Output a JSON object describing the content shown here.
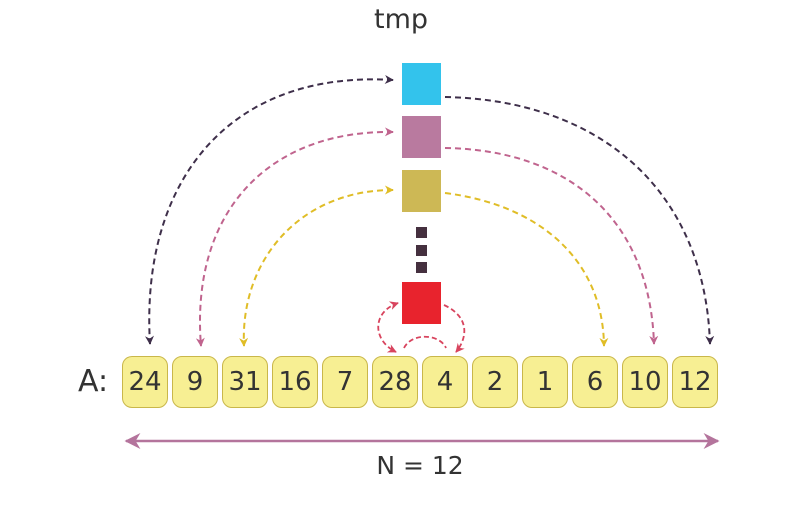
{
  "tmp_label": "tmp",
  "array_label": "A:",
  "array_values": [
    "24",
    "9",
    "31",
    "16",
    "7",
    "28",
    "4",
    "2",
    "1",
    "6",
    "10",
    "12"
  ],
  "n_label": "N = 12",
  "colors": {
    "cell_fill": "#f7ef93",
    "cell_border": "#c9b74a",
    "tmp_blue": "#33c3ec",
    "tmp_mauve": "#b97a9f",
    "tmp_olive": "#cdb855",
    "tmp_red": "#e8232d",
    "dots": "#45303f",
    "arrow_navy": "#3e2f4a",
    "arrow_pink": "#c0648e",
    "arrow_gold": "#e0bd27",
    "arrow_red": "#d8445e",
    "n_arrow": "#b4749c"
  }
}
